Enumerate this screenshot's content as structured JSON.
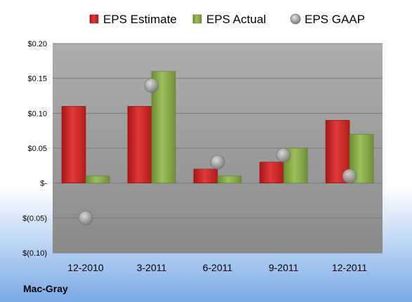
{
  "company": "Mac-Gray",
  "colors": {
    "estimate": "#d42a2a",
    "actual": "#8bb04a",
    "gaap": "#a6a6a6",
    "plot_bg_top": "#aeaeae",
    "plot_bg_bottom": "#8a8a8a",
    "page_bg_top": "#ffffff",
    "page_bg_bottom": "#7aa9e6"
  },
  "chart_data": {
    "type": "bar",
    "categories": [
      "12-2010",
      "3-2011",
      "6-2011",
      "9-2011",
      "12-2011"
    ],
    "series": [
      {
        "name": "EPS Estimate",
        "kind": "bar",
        "values": [
          0.11,
          0.11,
          0.02,
          0.03,
          0.09
        ]
      },
      {
        "name": "EPS Actual",
        "kind": "bar",
        "values": [
          0.01,
          0.16,
          0.01,
          0.05,
          0.07
        ]
      },
      {
        "name": "EPS GAAP",
        "kind": "marker",
        "values": [
          -0.05,
          0.14,
          0.03,
          0.04,
          0.01
        ]
      }
    ],
    "ylim": [
      -0.1,
      0.2
    ],
    "yticks": [
      0.2,
      0.15,
      0.1,
      0.05,
      0,
      -0.05,
      -0.1
    ],
    "ytick_labels": [
      "$0.20",
      "$0.15",
      "$0.10",
      "$0.05",
      "$-",
      "$(0.05)",
      "$(0.10)"
    ],
    "grid": true,
    "legend": "top"
  }
}
